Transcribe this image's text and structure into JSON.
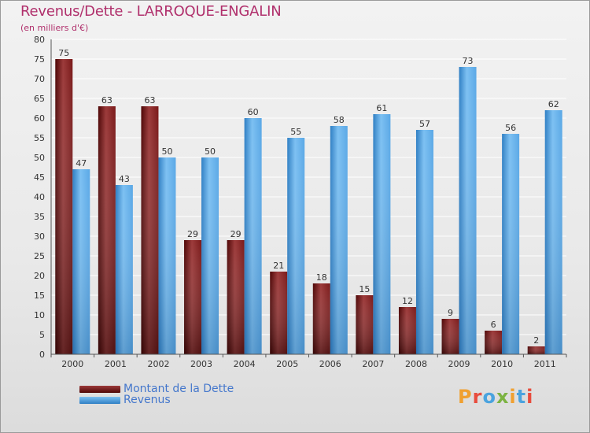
{
  "title": "Revenus/Dette - LARROQUE-ENGALIN",
  "subtitle": "(en milliers d'€)",
  "legend": [
    {
      "label": "Montant de la Dette",
      "color": "#7a1a1a"
    },
    {
      "label": "Revenus",
      "color": "#4a9de0"
    }
  ],
  "logo": {
    "text": "Proxiti"
  },
  "colors": {
    "debt": "#7a1a1a",
    "debt_light": "#9c3a3a",
    "debt_dark": "#4e0606",
    "revenue": "#5aa8e6",
    "revenue_light": "#7cc0f2",
    "revenue_dark": "#2f7fc4",
    "grid": "#ffffff",
    "text": "#333333"
  },
  "chart_data": {
    "type": "bar",
    "title": "Revenus/Dette - LARROQUE-ENGALIN",
    "subtitle": "(en milliers d'€)",
    "xlabel": "",
    "ylabel": "",
    "ylim": [
      0,
      80
    ],
    "yticks": [
      0,
      5,
      10,
      15,
      20,
      25,
      30,
      35,
      40,
      45,
      50,
      55,
      60,
      65,
      70,
      75,
      80
    ],
    "categories": [
      "2000",
      "2001",
      "2002",
      "2003",
      "2004",
      "2005",
      "2006",
      "2007",
      "2008",
      "2009",
      "2010",
      "2011"
    ],
    "series": [
      {
        "name": "Montant de la Dette",
        "values": [
          75,
          63,
          63,
          29,
          29,
          21,
          18,
          15,
          12,
          9,
          6,
          2
        ]
      },
      {
        "name": "Revenus",
        "values": [
          47,
          43,
          50,
          50,
          60,
          55,
          58,
          61,
          57,
          73,
          56,
          62
        ]
      }
    ],
    "legend_position": "bottom-left",
    "grid": true
  }
}
